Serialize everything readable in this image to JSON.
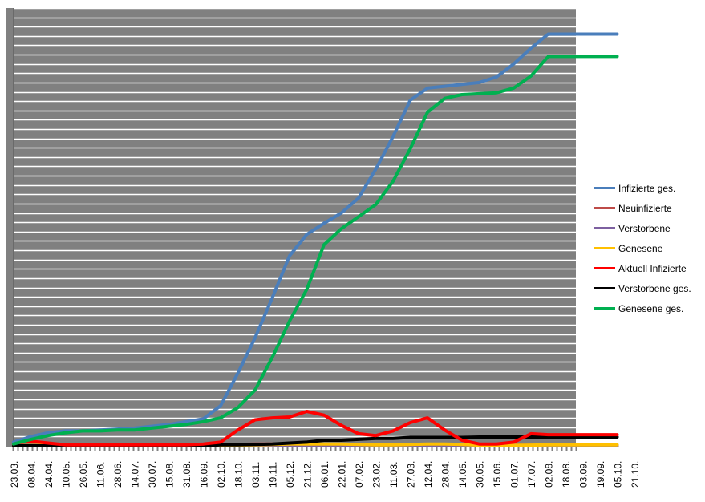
{
  "chart_data": {
    "type": "line",
    "title": "",
    "xlabel": "",
    "ylabel": "",
    "y_scale_note": "",
    "ylim": [
      0,
      47
    ],
    "grid": true,
    "legend_position": "right",
    "plot_background": "#808080",
    "gridline_color": "#ffffff",
    "x_tick_labels": [
      "23.03.",
      "08.04.",
      "24.04.",
      "10.05.",
      "26.05.",
      "11.06.",
      "28.06.",
      "14.07.",
      "30.07.",
      "15.08.",
      "31.08.",
      "16.09.",
      "02.10.",
      "18.10.",
      "03.11.",
      "19.11.",
      "05.12.",
      "21.12.",
      "06.01.",
      "22.01.",
      "07.02.",
      "23.02.",
      "11.03.",
      "27.03.",
      "12.04.",
      "28.04.",
      "14.05.",
      "30.05.",
      "15.06.",
      "01.07.",
      "17.07.",
      "02.08.",
      "18.08.",
      "03.09.",
      "19.09.",
      "05.10.",
      "21.10."
    ],
    "x": [
      "23.03.",
      "08.04.",
      "24.04.",
      "10.05.",
      "26.05.",
      "11.06.",
      "28.06.",
      "14.07.",
      "30.07.",
      "15.08.",
      "31.08.",
      "16.09.",
      "02.10.",
      "18.10.",
      "03.11.",
      "19.11.",
      "05.12.",
      "21.12.",
      "06.01.",
      "22.01.",
      "07.02.",
      "23.02.",
      "11.03.",
      "27.03.",
      "12.04.",
      "28.04.",
      "14.05.",
      "30.05.",
      "15.06.",
      "01.07.",
      "17.07.",
      "02.08.",
      "18.08.",
      "03.09.",
      "19.09.",
      "05.10."
    ],
    "series": [
      {
        "name": "Infizierte ges.",
        "color": "#4a7ebb",
        "values": [
          0.4,
          1.0,
          1.4,
          1.6,
          1.6,
          1.7,
          1.8,
          1.9,
          2.1,
          2.3,
          2.6,
          2.9,
          4.3,
          7.8,
          11.6,
          15.9,
          20.4,
          22.7,
          23.9,
          25.0,
          26.6,
          29.7,
          33.2,
          37.1,
          38.4,
          38.6,
          38.8,
          39.0,
          39.6,
          41.0,
          42.7,
          44.2,
          44.2,
          44.2,
          44.2,
          44.2
        ]
      },
      {
        "name": "Neuinfizierte",
        "color": "#be4b48",
        "values": [
          0.05,
          0.05,
          0.05,
          0.03,
          0.02,
          0.02,
          0.02,
          0.02,
          0.02,
          0.03,
          0.03,
          0.05,
          0.08,
          0.15,
          0.2,
          0.2,
          0.2,
          0.2,
          0.15,
          0.1,
          0.08,
          0.08,
          0.1,
          0.15,
          0.15,
          0.1,
          0.05,
          0.03,
          0.03,
          0.05,
          0.08,
          0.08,
          0.08,
          0.08,
          0.08,
          0.08
        ]
      },
      {
        "name": "Verstorbene",
        "color": "#7d60a0",
        "values": [
          0,
          0,
          0,
          0,
          0,
          0,
          0,
          0,
          0,
          0,
          0,
          0,
          0,
          0,
          0.01,
          0.01,
          0.02,
          0.02,
          0.02,
          0.02,
          0.01,
          0.01,
          0.01,
          0.01,
          0.01,
          0.01,
          0,
          0,
          0,
          0,
          0,
          0,
          0,
          0,
          0,
          0
        ]
      },
      {
        "name": "Genesene",
        "color": "#ffc000",
        "values": [
          0,
          0.02,
          0.05,
          0.03,
          0.02,
          0.02,
          0.02,
          0.02,
          0.02,
          0.02,
          0.03,
          0.03,
          0.05,
          0.08,
          0.1,
          0.15,
          0.2,
          0.2,
          0.2,
          0.2,
          0.15,
          0.1,
          0.1,
          0.15,
          0.2,
          0.2,
          0.15,
          0.08,
          0.05,
          0.05,
          0.08,
          0.1,
          0.1,
          0.1,
          0.1,
          0.1
        ]
      },
      {
        "name": "Aktuell Infizierte",
        "color": "#ff0000",
        "values": [
          0.3,
          0.5,
          0.3,
          0.1,
          0.1,
          0.1,
          0.1,
          0.1,
          0.1,
          0.1,
          0.1,
          0.2,
          0.4,
          1.7,
          2.8,
          3.0,
          3.1,
          3.7,
          3.3,
          2.2,
          1.3,
          1.1,
          1.6,
          2.5,
          3.0,
          1.7,
          0.6,
          0.2,
          0.2,
          0.4,
          1.3,
          1.2,
          1.2,
          1.2,
          1.2,
          1.2
        ]
      },
      {
        "name": "Verstorbene ges.",
        "color": "#000000",
        "values": [
          0,
          0,
          0,
          0,
          0,
          0,
          0,
          0,
          0,
          0,
          0,
          0,
          0.1,
          0.1,
          0.15,
          0.2,
          0.3,
          0.4,
          0.6,
          0.6,
          0.7,
          0.8,
          0.8,
          0.9,
          0.9,
          0.9,
          0.9,
          0.95,
          0.95,
          0.95,
          0.95,
          0.95,
          0.95,
          0.95,
          0.95,
          0.95
        ]
      },
      {
        "name": "Genesene ges.",
        "color": "#00b050",
        "values": [
          0.2,
          0.7,
          1.1,
          1.4,
          1.6,
          1.6,
          1.7,
          1.7,
          1.9,
          2.1,
          2.3,
          2.6,
          3.0,
          4.1,
          6.0,
          9.5,
          13.4,
          16.8,
          21.6,
          23.3,
          24.6,
          25.9,
          28.4,
          31.9,
          35.8,
          37.3,
          37.7,
          37.8,
          37.9,
          38.4,
          39.7,
          41.8,
          41.8,
          41.8,
          41.8,
          41.8
        ]
      }
    ]
  }
}
